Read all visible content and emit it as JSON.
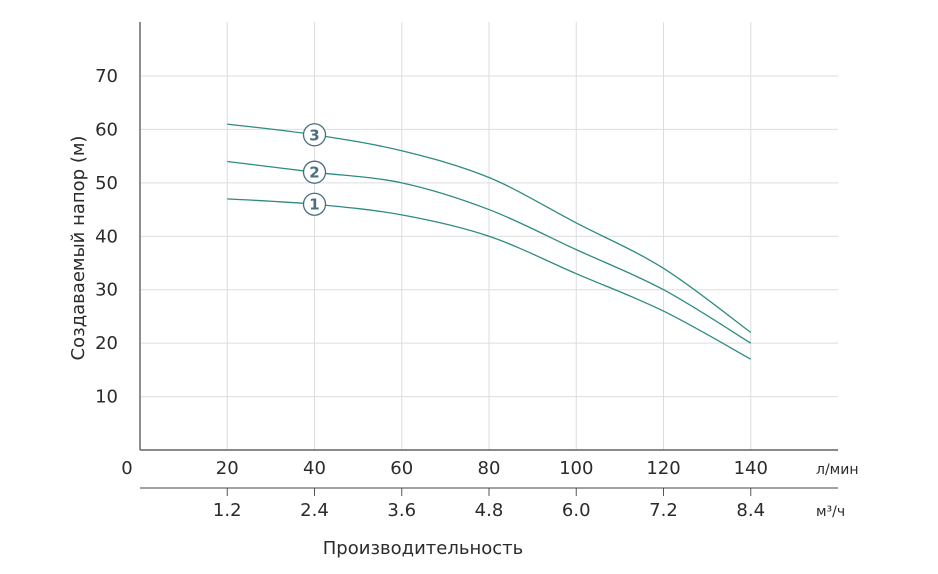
{
  "chart_data": {
    "type": "line",
    "ylabel": "Создаваемый напор (м)",
    "xlabel": "Производительность",
    "x_unit_primary": "л/мин",
    "x_unit_secondary": "м³/ч",
    "origin_label": "0",
    "x_ticks": [
      "20",
      "40",
      "60",
      "80",
      "100",
      "120",
      "140"
    ],
    "x_ticks_secondary": [
      "1.2",
      "2.4",
      "3.6",
      "4.8",
      "6.0",
      "7.2",
      "8.4"
    ],
    "y_ticks": [
      "10",
      "20",
      "30",
      "40",
      "50",
      "60",
      "70"
    ],
    "xlim": [
      0,
      160
    ],
    "ylim": [
      0,
      70
    ],
    "grid": true,
    "line_color": "#2e8b82",
    "marker_color": "#4a6e80",
    "series": [
      {
        "name": "1",
        "x": [
          20,
          40,
          60,
          80,
          100,
          120,
          140
        ],
        "y": [
          47,
          46,
          44,
          40,
          33,
          26,
          17
        ]
      },
      {
        "name": "2",
        "x": [
          20,
          40,
          60,
          80,
          100,
          120,
          140
        ],
        "y": [
          54,
          52,
          50,
          45,
          37.5,
          30,
          20
        ]
      },
      {
        "name": "3",
        "x": [
          20,
          40,
          60,
          80,
          100,
          120,
          140
        ],
        "y": [
          61,
          59,
          56,
          51,
          42.5,
          34,
          22
        ]
      }
    ]
  }
}
